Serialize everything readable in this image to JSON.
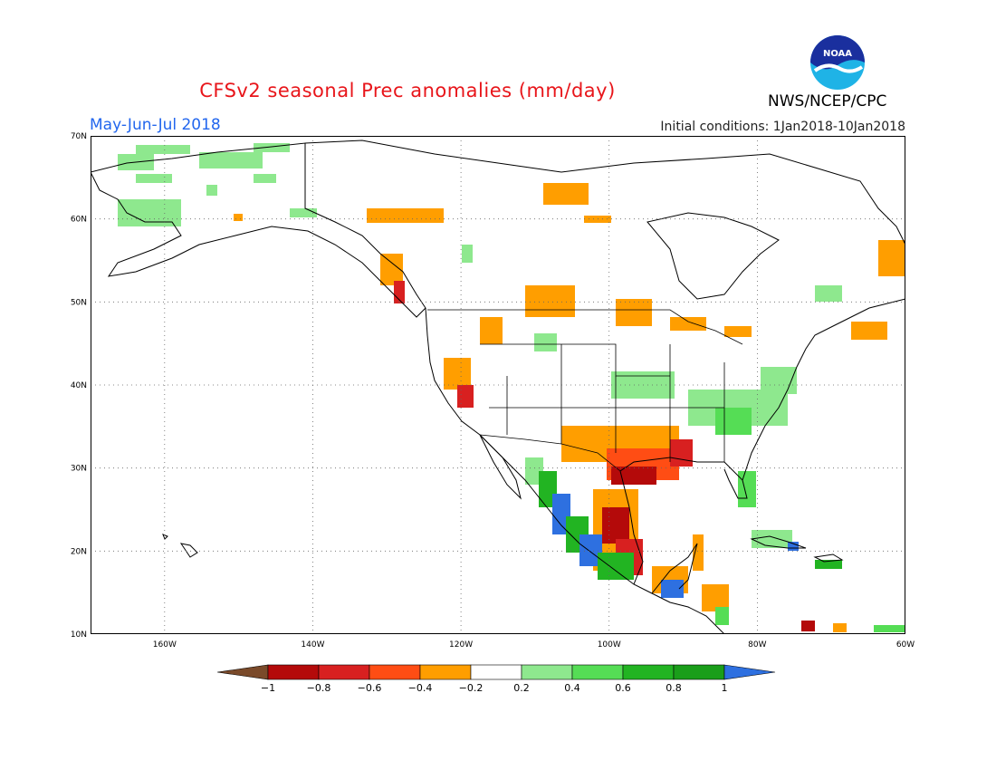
{
  "header": {
    "title": "CFSv2 seasonal Prec anomalies (mm/day)",
    "period": "May-Jun-Jul 2018",
    "initial_conditions": "Initial conditions: 1Jan2018-10Jan2018",
    "agency": "NWS/NCEP/CPC",
    "logo_text": "NOAA"
  },
  "map": {
    "lon_range": [
      -170,
      -60
    ],
    "lat_range": [
      10,
      70
    ],
    "grid": true,
    "lon_ticks": [
      {
        "value": -160,
        "label": "160W"
      },
      {
        "value": -140,
        "label": "140W"
      },
      {
        "value": -120,
        "label": "120W"
      },
      {
        "value": -100,
        "label": "100W"
      },
      {
        "value": -80,
        "label": "80W"
      },
      {
        "value": -60,
        "label": "60W"
      }
    ],
    "lat_ticks": [
      {
        "value": 70,
        "label": "70N"
      },
      {
        "value": 60,
        "label": "60N"
      },
      {
        "value": 50,
        "label": "50N"
      },
      {
        "value": 40,
        "label": "40N"
      },
      {
        "value": 30,
        "label": "30N"
      },
      {
        "value": 20,
        "label": "20N"
      },
      {
        "value": 10,
        "label": "10N"
      }
    ]
  },
  "legend": {
    "labels": [
      "-1",
      "-0.8",
      "-0.6",
      "-0.4",
      "-0.2",
      "0.2",
      "0.4",
      "0.6",
      "0.8",
      "1"
    ],
    "colors": [
      "#7a4a2a",
      "#b40a0a",
      "#d82020",
      "#ff4d14",
      "#ff9e00",
      "#ffffff",
      "#8ee88e",
      "#55dd55",
      "#22b422",
      "#1a9e1a",
      "#2e70e0"
    ]
  }
}
